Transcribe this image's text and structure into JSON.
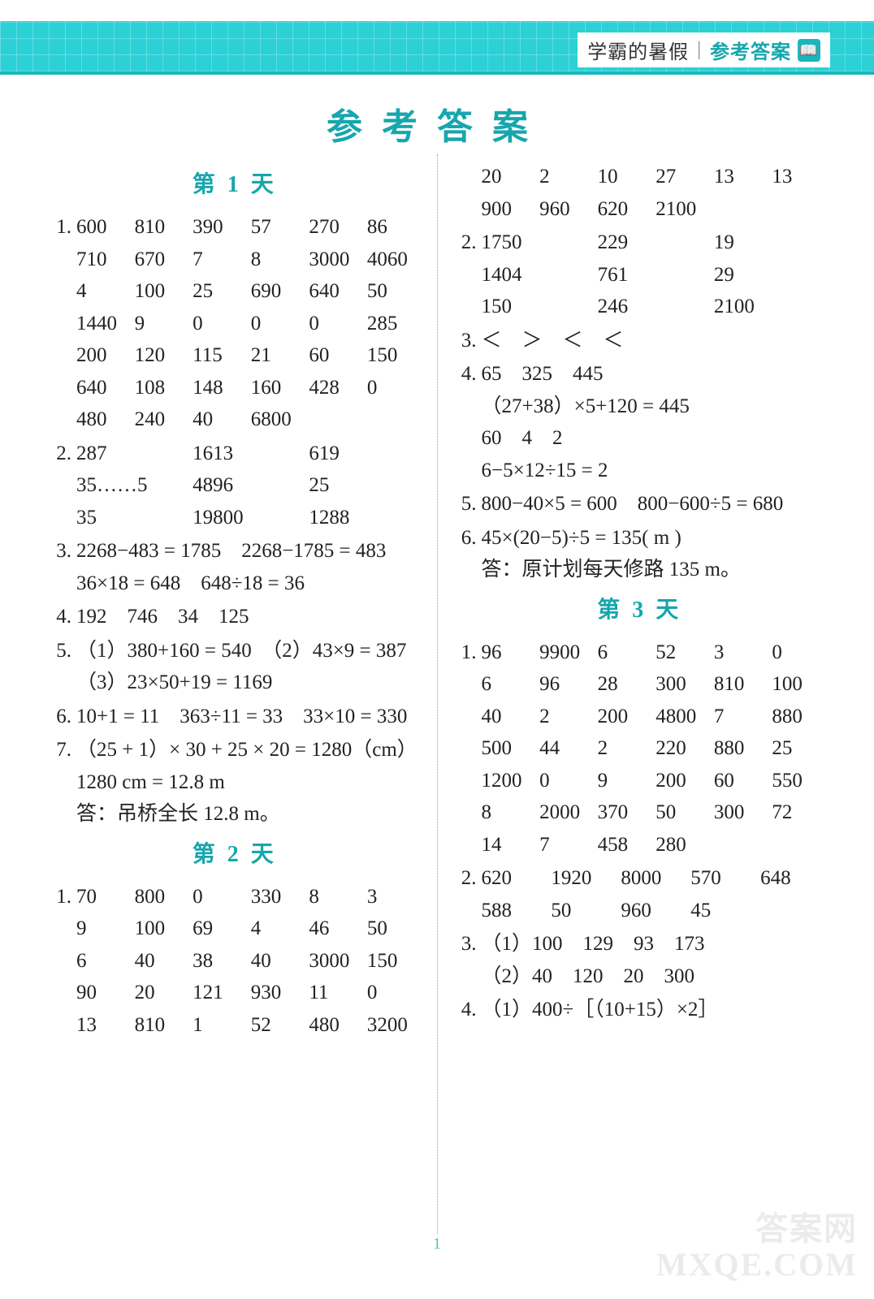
{
  "header": {
    "tag_pre": "学霸的暑假",
    "tag_strong": "参考答案",
    "glyph": "📖"
  },
  "title": "参考答案",
  "page_number": "1",
  "watermark_line1": "答案网",
  "watermark_line2": "MXQE.COM",
  "left": [
    {
      "type": "heading",
      "text": "第 1 天"
    },
    {
      "type": "item",
      "num": "1.",
      "rows": [
        [
          "600",
          "810",
          "390",
          "57",
          "270",
          "86"
        ],
        [
          "710",
          "670",
          "7",
          "8",
          "3000",
          "4060"
        ],
        [
          "4",
          "100",
          "25",
          "690",
          "640",
          "50"
        ],
        [
          "1440",
          "9",
          "0",
          "0",
          "0",
          "285"
        ],
        [
          "200",
          "120",
          "115",
          "21",
          "60",
          "150"
        ],
        [
          "640",
          "108",
          "148",
          "160",
          "428",
          "0"
        ],
        [
          "480",
          "240",
          "40",
          "6800",
          "",
          ""
        ]
      ]
    },
    {
      "type": "item",
      "num": "2.",
      "rows": [
        [
          "287",
          "1613",
          "619"
        ],
        [
          "35……5",
          "4896",
          "25"
        ],
        [
          "35",
          "19800",
          "1288"
        ]
      ]
    },
    {
      "type": "item",
      "num": "3.",
      "lines": [
        "2268−483 = 1785　2268−1785 = 483",
        "36×18 = 648　648÷18 = 36"
      ]
    },
    {
      "type": "item",
      "num": "4.",
      "lines": [
        "192　746　34　125"
      ]
    },
    {
      "type": "item",
      "num": "5.",
      "lines": [
        "（1）380+160 = 540　（2）43×9 = 387",
        "（3）23×50+19 = 1169"
      ]
    },
    {
      "type": "item",
      "num": "6.",
      "lines": [
        "10+1 = 11　363÷11 = 33　33×10 = 330"
      ]
    },
    {
      "type": "item",
      "num": "7.",
      "lines": [
        "（25 + 1）× 30 + 25 × 20 = 1280（cm）",
        "1280 cm = 12.8 m",
        "答：吊桥全长 12.8 m。"
      ]
    },
    {
      "type": "heading",
      "text": "第 2 天"
    },
    {
      "type": "item",
      "num": "1.",
      "rows": [
        [
          "70",
          "800",
          "0",
          "330",
          "8",
          "3"
        ],
        [
          "9",
          "100",
          "69",
          "4",
          "46",
          "50"
        ],
        [
          "6",
          "40",
          "38",
          "40",
          "3000",
          "150"
        ],
        [
          "90",
          "20",
          "121",
          "930",
          "11",
          "0"
        ],
        [
          "13",
          "810",
          "1",
          "52",
          "480",
          "3200"
        ]
      ]
    }
  ],
  "right": [
    {
      "type": "item",
      "num": "",
      "rows": [
        [
          "20",
          "2",
          "10",
          "27",
          "13",
          "13"
        ],
        [
          "900",
          "960",
          "620",
          "2100",
          "",
          ""
        ]
      ]
    },
    {
      "type": "item",
      "num": "2.",
      "rows": [
        [
          "1750",
          "229",
          "19"
        ],
        [
          "1404",
          "761",
          "29"
        ],
        [
          "150",
          "246",
          "2100"
        ]
      ]
    },
    {
      "type": "item",
      "num": "3.",
      "lines": [
        "＜　＞　＜　＜"
      ]
    },
    {
      "type": "item",
      "num": "4.",
      "lines": [
        "65　325　445",
        "（27+38）×5+120 = 445",
        "60　4　2",
        "6−5×12÷15 = 2"
      ]
    },
    {
      "type": "item",
      "num": "5.",
      "lines": [
        "800−40×5 = 600　800−600÷5 = 680"
      ]
    },
    {
      "type": "item",
      "num": "6.",
      "lines": [
        "45×(20−5)÷5 = 135( m )",
        "答：原计划每天修路 135 m。"
      ]
    },
    {
      "type": "heading",
      "text": "第 3 天"
    },
    {
      "type": "item",
      "num": "1.",
      "rows": [
        [
          "96",
          "9900",
          "6",
          "52",
          "3",
          "0"
        ],
        [
          "6",
          "96",
          "28",
          "300",
          "810",
          "100"
        ],
        [
          "40",
          "2",
          "200",
          "4800",
          "7",
          "880"
        ],
        [
          "500",
          "44",
          "2",
          "220",
          "880",
          "25"
        ],
        [
          "1200",
          "0",
          "9",
          "200",
          "60",
          "550"
        ],
        [
          "8",
          "2000",
          "370",
          "50",
          "300",
          "72"
        ],
        [
          "14",
          "7",
          "458",
          "280",
          "",
          ""
        ]
      ]
    },
    {
      "type": "item",
      "num": "2.",
      "rows": [
        [
          "620",
          "1920",
          "8000",
          "570",
          "648"
        ],
        [
          "588",
          "50",
          "960",
          "45",
          ""
        ]
      ]
    },
    {
      "type": "item",
      "num": "3.",
      "lines": [
        "（1）100　129　93　173",
        "（2）40　120　20　300"
      ]
    },
    {
      "type": "item",
      "num": "4.",
      "lines": [
        "（1）400÷［（10+15）×2］"
      ]
    }
  ]
}
